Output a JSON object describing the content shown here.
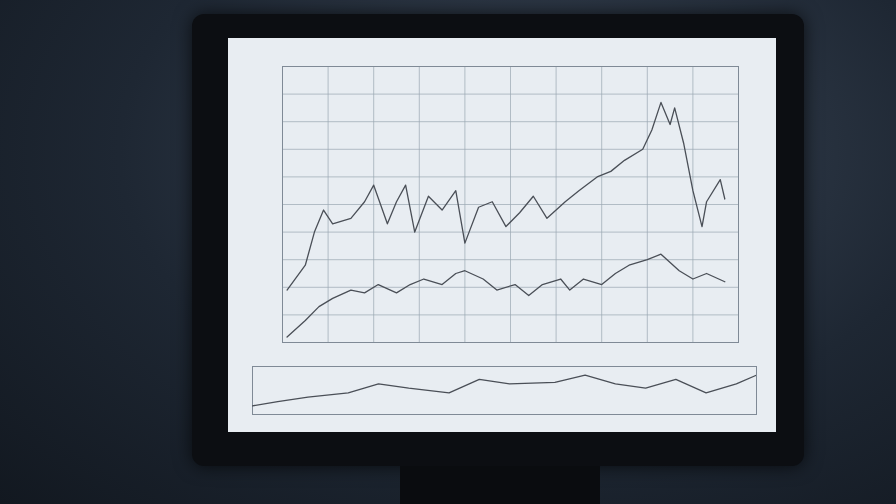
{
  "chart_data": [
    {
      "type": "line",
      "grid": true,
      "tick_labels": false,
      "xlim": [
        0,
        100
      ],
      "ylim": [
        0,
        100
      ],
      "xticks": [
        0,
        10,
        20,
        30,
        40,
        50,
        60,
        70,
        80,
        90,
        100
      ],
      "yticks": [
        0,
        10,
        20,
        30,
        40,
        50,
        60,
        70,
        80,
        90,
        100
      ],
      "series": [
        {
          "color": "#4a4f57",
          "x": [
            1,
            5,
            7,
            9,
            11,
            15,
            18,
            20,
            23,
            25,
            27,
            29,
            32,
            35,
            38,
            40,
            43,
            46,
            49,
            52,
            55,
            58,
            62,
            65,
            69,
            72,
            75,
            79,
            81,
            83,
            85,
            86,
            88,
            90,
            92,
            93,
            96,
            97
          ],
          "values": [
            19,
            28,
            40,
            48,
            43,
            45,
            51,
            57,
            43,
            51,
            57,
            40,
            53,
            48,
            55,
            36,
            49,
            51,
            42,
            47,
            53,
            45,
            51,
            55,
            60,
            62,
            66,
            70,
            77,
            87,
            79,
            85,
            72,
            55,
            42,
            51,
            59,
            52
          ]
        },
        {
          "color": "#4a4f57",
          "x": [
            1,
            5,
            8,
            11,
            15,
            18,
            21,
            25,
            28,
            31,
            35,
            38,
            40,
            44,
            47,
            51,
            54,
            57,
            61,
            63,
            66,
            70,
            73,
            76,
            80,
            83,
            87,
            90,
            93,
            97
          ],
          "values": [
            2,
            8,
            13,
            16,
            19,
            18,
            21,
            18,
            21,
            23,
            21,
            25,
            26,
            23,
            19,
            21,
            17,
            21,
            23,
            19,
            23,
            21,
            25,
            28,
            30,
            32,
            26,
            23,
            25,
            22
          ]
        }
      ]
    },
    {
      "type": "line",
      "grid": false,
      "tick_labels": false,
      "xlim": [
        0,
        100
      ],
      "ylim": [
        0,
        100
      ],
      "series": [
        {
          "color": "#4a4f57",
          "x": [
            0,
            5,
            11,
            19,
            25,
            31,
            39,
            45,
            51,
            60,
            66,
            72,
            78,
            84,
            90,
            96,
            100
          ],
          "values": [
            18,
            27,
            36,
            45,
            64,
            55,
            45,
            73,
            64,
            67,
            82,
            64,
            55,
            73,
            45,
            64,
            82
          ]
        }
      ]
    }
  ]
}
